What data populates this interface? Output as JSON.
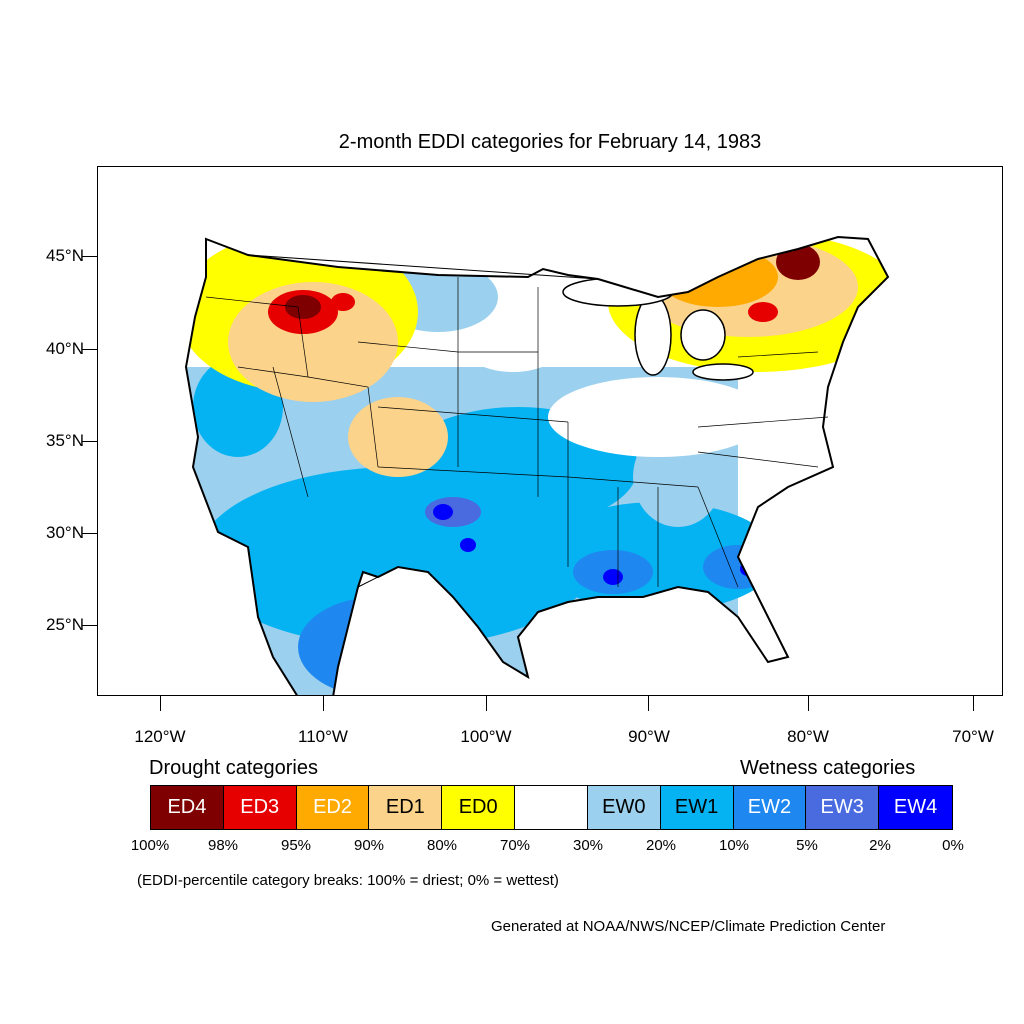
{
  "title": "2-month EDDI categories for February 14, 1983",
  "lat_labels": [
    "45°N",
    "40°N",
    "35°N",
    "30°N",
    "25°N"
  ],
  "lon_labels": [
    "120°W",
    "110°W",
    "100°W",
    "90°W",
    "80°W",
    "70°W"
  ],
  "legend": {
    "drought_heading": "Drought categories",
    "wetness_heading": "Wetness categories",
    "categories": [
      {
        "label": "ED4",
        "color": "#7f0000",
        "text_color": "#ffffff"
      },
      {
        "label": "ED3",
        "color": "#e60000",
        "text_color": "#ffffff"
      },
      {
        "label": "ED2",
        "color": "#ffaa00",
        "text_color": "#ffffff"
      },
      {
        "label": "ED1",
        "color": "#fcd38a",
        "text_color": "#000000"
      },
      {
        "label": "ED0",
        "color": "#ffff00",
        "text_color": "#000000"
      },
      {
        "label": "",
        "color": "#ffffff",
        "text_color": "#000000"
      },
      {
        "label": "EW0",
        "color": "#9bd0ee",
        "text_color": "#000000"
      },
      {
        "label": "EW1",
        "color": "#06b3f2",
        "text_color": "#000000"
      },
      {
        "label": "EW2",
        "color": "#1e88f0",
        "text_color": "#ffffff"
      },
      {
        "label": "EW3",
        "color": "#4a6be0",
        "text_color": "#ffffff"
      },
      {
        "label": "EW4",
        "color": "#0000ff",
        "text_color": "#ffffff"
      }
    ],
    "percentiles": [
      "100%",
      "98%",
      "95%",
      "90%",
      "80%",
      "70%",
      "30%",
      "20%",
      "10%",
      "5%",
      "2%",
      "0%"
    ]
  },
  "breaks_note": "(EDDI-percentile category breaks: 100% = driest; 0% = wettest)",
  "credit": "Generated at NOAA/NWS/NCEP/Climate Prediction Center"
}
